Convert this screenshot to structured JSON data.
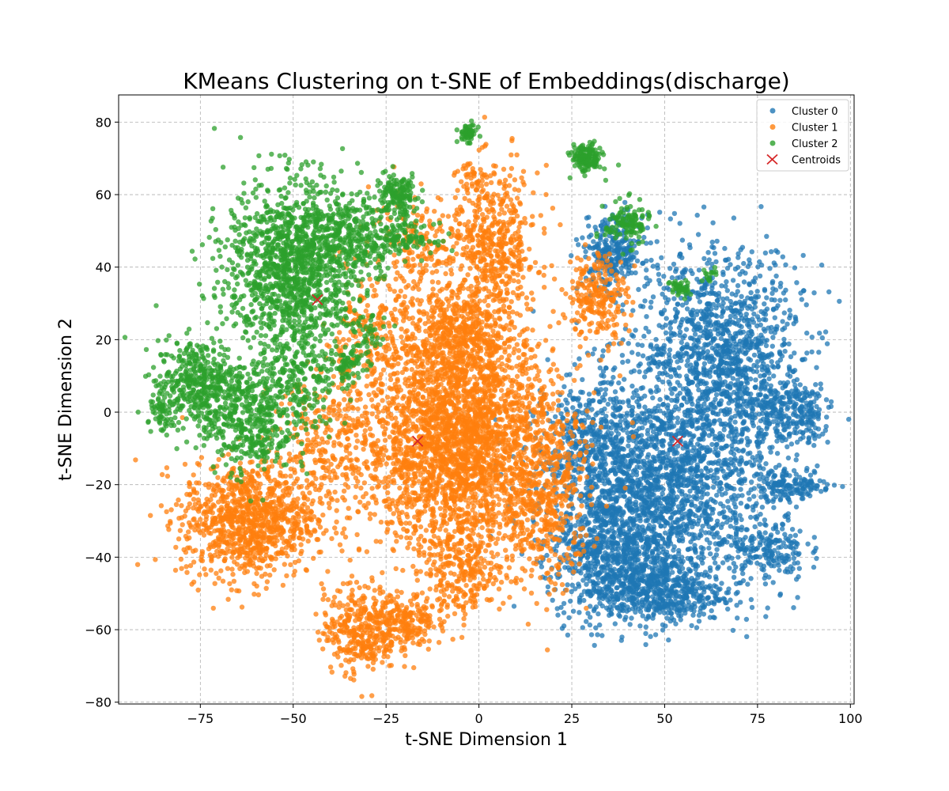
{
  "chart_data": {
    "type": "scatter",
    "title": "KMeans Clustering on t-SNE of Embeddings(discharge)",
    "xlabel": "t-SNE Dimension 1",
    "ylabel": "t-SNE Dimension 2",
    "xlim": [
      -97,
      101
    ],
    "ylim": [
      -80.5,
      87.5
    ],
    "xticks": [
      -75,
      -50,
      -25,
      0,
      25,
      50,
      75,
      100
    ],
    "xtick_labels": [
      "−75",
      "−50",
      "−25",
      "0",
      "25",
      "50",
      "75",
      "100"
    ],
    "yticks": [
      -80,
      -60,
      -40,
      -20,
      0,
      20,
      40,
      60,
      80
    ],
    "ytick_labels": [
      "−80",
      "−60",
      "−40",
      "−20",
      "0",
      "20",
      "40",
      "60",
      "80"
    ],
    "grid": true,
    "legend_position": "top-right",
    "series": [
      {
        "name": "Cluster 0",
        "color": "#1f77b4",
        "blobs": [
          {
            "cx": 65,
            "cy": 18,
            "sx": 11,
            "sy": 13,
            "n": 1100
          },
          {
            "cx": 50,
            "cy": -20,
            "sx": 15,
            "sy": 15,
            "n": 2000
          },
          {
            "cx": 36,
            "cy": -40,
            "sx": 8,
            "sy": 9,
            "n": 600
          },
          {
            "cx": 48,
            "cy": -50,
            "sx": 9,
            "sy": 4,
            "n": 450
          },
          {
            "cx": 85,
            "cy": -20,
            "sx": 5,
            "sy": 2,
            "n": 130
          },
          {
            "cx": 78,
            "cy": -38,
            "sx": 5,
            "sy": 4,
            "n": 160
          },
          {
            "cx": 80,
            "cy": 0,
            "sx": 6,
            "sy": 6,
            "n": 220
          },
          {
            "cx": 88,
            "cy": 0,
            "sx": 3,
            "sy": 4,
            "n": 90
          },
          {
            "cx": 36,
            "cy": 44,
            "sx": 4,
            "sy": 5,
            "n": 280
          },
          {
            "cx": 30,
            "cy": -10,
            "sx": 6,
            "sy": 10,
            "n": 350
          }
        ]
      },
      {
        "name": "Cluster 1",
        "color": "#ff7f0e",
        "blobs": [
          {
            "cx": -5,
            "cy": -8,
            "sx": 13,
            "sy": 15,
            "n": 2800
          },
          {
            "cx": -62,
            "cy": -30,
            "sx": 9,
            "sy": 8,
            "n": 1000
          },
          {
            "cx": -32,
            "cy": -60,
            "sx": 5,
            "sy": 6,
            "n": 350
          },
          {
            "cx": -20,
            "cy": -58,
            "sx": 4,
            "sy": 4,
            "n": 200
          },
          {
            "cx": 4,
            "cy": 45,
            "sx": 6,
            "sy": 11,
            "n": 550
          },
          {
            "cx": -5,
            "cy": 20,
            "sx": 7,
            "sy": 6,
            "n": 450
          },
          {
            "cx": 32,
            "cy": 32,
            "sx": 4,
            "sy": 6,
            "n": 230
          },
          {
            "cx": -30,
            "cy": 20,
            "sx": 6,
            "sy": 8,
            "n": 220
          },
          {
            "cx": -15,
            "cy": 45,
            "sx": 7,
            "sy": 8,
            "n": 200
          },
          {
            "cx": 18,
            "cy": -25,
            "sx": 6,
            "sy": 12,
            "n": 400
          },
          {
            "cx": -40,
            "cy": -10,
            "sx": 8,
            "sy": 10,
            "n": 300
          },
          {
            "cx": -5,
            "cy": -45,
            "sx": 6,
            "sy": 6,
            "n": 250
          },
          {
            "cx": -2,
            "cy": 65,
            "sx": 2,
            "sy": 2,
            "n": 30
          }
        ]
      },
      {
        "name": "Cluster 2",
        "color": "#2ca02c",
        "blobs": [
          {
            "cx": -50,
            "cy": 40,
            "sx": 9,
            "sy": 12,
            "n": 1300
          },
          {
            "cx": -35,
            "cy": 48,
            "sx": 7,
            "sy": 6,
            "n": 300
          },
          {
            "cx": -75,
            "cy": 8,
            "sx": 6,
            "sy": 6,
            "n": 450
          },
          {
            "cx": -62,
            "cy": -3,
            "sx": 6,
            "sy": 7,
            "n": 350
          },
          {
            "cx": -50,
            "cy": 8,
            "sx": 6,
            "sy": 8,
            "n": 250
          },
          {
            "cx": -85,
            "cy": 0,
            "sx": 2,
            "sy": 3,
            "n": 60
          },
          {
            "cx": -22,
            "cy": 60,
            "sx": 3,
            "sy": 3,
            "n": 150
          },
          {
            "cx": -20,
            "cy": 48,
            "sx": 4,
            "sy": 2,
            "n": 100
          },
          {
            "cx": -3,
            "cy": 77,
            "sx": 1.2,
            "sy": 1.2,
            "n": 60
          },
          {
            "cx": 29,
            "cy": 70,
            "sx": 2,
            "sy": 2,
            "n": 150
          },
          {
            "cx": 40,
            "cy": 52,
            "sx": 3,
            "sy": 3,
            "n": 120
          },
          {
            "cx": 54,
            "cy": 34,
            "sx": 1.3,
            "sy": 1.3,
            "n": 45
          },
          {
            "cx": 62,
            "cy": 38,
            "sx": 1,
            "sy": 1,
            "n": 15
          },
          {
            "cx": -35,
            "cy": 13,
            "sx": 2,
            "sy": 2,
            "n": 60
          },
          {
            "cx": -30,
            "cy": 20,
            "sx": 2,
            "sy": 3,
            "n": 40
          }
        ]
      }
    ],
    "centroids": {
      "name": "Centroids",
      "color": "#d62728",
      "points": [
        {
          "x": -43.5,
          "y": 31
        },
        {
          "x": -16.5,
          "y": -8
        },
        {
          "x": 53.5,
          "y": -8
        }
      ]
    }
  }
}
